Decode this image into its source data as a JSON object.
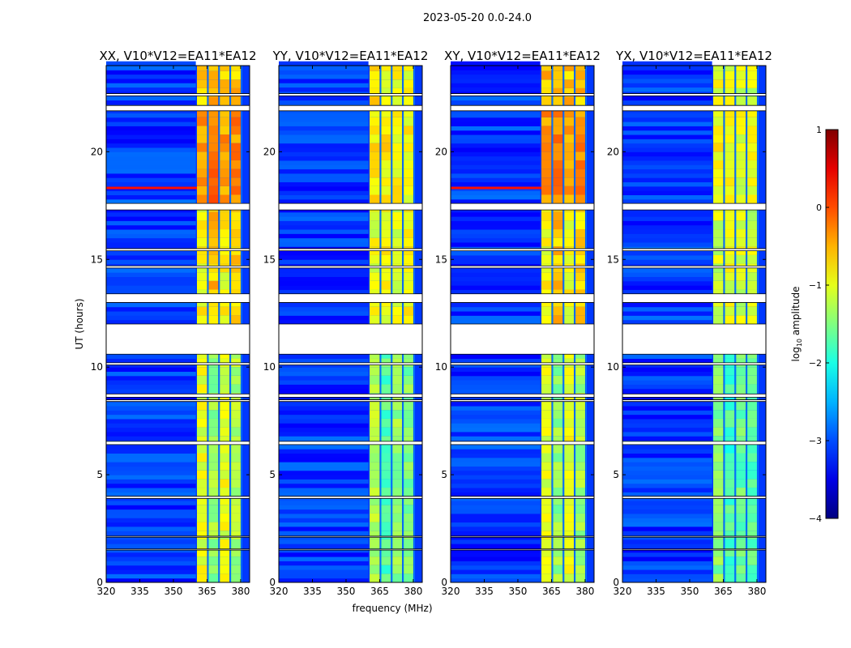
{
  "chart_data": {
    "type": "heatmap",
    "suptitle": "2023-05-20 0.0-24.0",
    "xlabel": "frequency (MHz)",
    "ylabel": "UT (hours)",
    "xlim": [
      320,
      384
    ],
    "ylim": [
      0,
      24
    ],
    "xticks": [
      320,
      335,
      350,
      365,
      380
    ],
    "yticks": [
      0,
      5,
      10,
      15,
      20
    ],
    "colorbar": {
      "label": "log10 amplitude",
      "label_main": "log",
      "label_sub": "10",
      "label_rest": " amplitude",
      "range": [
        -4,
        1
      ],
      "ticks": [
        1,
        0,
        -1,
        -2,
        -3,
        -4
      ],
      "colormap": "jet"
    },
    "background_level": -3.1,
    "subbands": [
      [
        360.5,
        365
      ],
      [
        365.5,
        370
      ],
      [
        370.5,
        375
      ],
      [
        375.5,
        380
      ]
    ],
    "flagged_hours": [
      [
        21.9,
        22.15
      ],
      [
        17.3,
        17.6
      ],
      [
        13.0,
        13.4
      ],
      [
        10.6,
        12.0
      ],
      [
        8.6,
        8.75
      ],
      [
        8.4,
        8.48
      ],
      [
        6.4,
        6.55
      ],
      [
        3.9,
        4.0
      ],
      [
        1.5,
        1.55
      ],
      [
        2.1,
        2.15
      ],
      [
        15.4,
        15.5
      ],
      [
        14.6,
        14.7
      ],
      [
        22.6,
        22.7
      ],
      [
        10.1,
        10.2
      ]
    ],
    "panels": [
      {
        "title": "XX, V10*V12=EA11*EA12",
        "rfi_line_hour": 18.3,
        "segments": [
          {
            "from": 0,
            "to": 10.6,
            "levels": [
              -1.0,
              -1.4,
              -1.0,
              -1.3
            ]
          },
          {
            "from": 12,
            "to": 17.3,
            "levels": [
              -0.9,
              -0.6,
              -0.9,
              -0.7
            ]
          },
          {
            "from": 17.6,
            "to": 21.9,
            "levels": [
              -0.4,
              -0.2,
              -0.4,
              -0.3
            ]
          },
          {
            "from": 22.15,
            "to": 24,
            "levels": [
              -0.6,
              -0.5,
              -0.6,
              -0.6
            ]
          }
        ]
      },
      {
        "title": "YY, V10*V12=EA11*EA12",
        "rfi_line_hour": null,
        "segments": [
          {
            "from": 0,
            "to": 10.6,
            "levels": [
              -1.3,
              -1.7,
              -1.4,
              -1.5
            ]
          },
          {
            "from": 12,
            "to": 17.3,
            "levels": [
              -1.0,
              -0.9,
              -1.0,
              -0.9
            ]
          },
          {
            "from": 17.6,
            "to": 21.9,
            "levels": [
              -0.8,
              -0.8,
              -0.9,
              -0.9
            ]
          },
          {
            "from": 22.15,
            "to": 24,
            "levels": [
              -0.8,
              -0.9,
              -0.9,
              -0.9
            ]
          }
        ]
      },
      {
        "title": "XY, V10*V12=EA11*EA12",
        "rfi_line_hour": 18.3,
        "segments": [
          {
            "from": 0,
            "to": 10.6,
            "levels": [
              -1.0,
              -1.4,
              -1.0,
              -1.3
            ]
          },
          {
            "from": 12,
            "to": 17.3,
            "levels": [
              -0.9,
              -0.6,
              -0.9,
              -0.7
            ]
          },
          {
            "from": 17.6,
            "to": 21.9,
            "levels": [
              -0.4,
              -0.2,
              -0.4,
              -0.3
            ]
          },
          {
            "from": 22.15,
            "to": 24,
            "levels": [
              -0.6,
              -0.5,
              -0.6,
              -0.6
            ]
          }
        ]
      },
      {
        "title": "YX, V10*V12=EA11*EA12",
        "rfi_line_hour": null,
        "segments": [
          {
            "from": 0,
            "to": 10.6,
            "levels": [
              -1.5,
              -1.8,
              -1.6,
              -1.7
            ]
          },
          {
            "from": 12,
            "to": 17.3,
            "levels": [
              -1.1,
              -1.0,
              -1.1,
              -1.1
            ]
          },
          {
            "from": 17.6,
            "to": 21.9,
            "levels": [
              -0.9,
              -0.9,
              -1.0,
              -1.0
            ]
          },
          {
            "from": 22.15,
            "to": 24,
            "levels": [
              -1.0,
              -1.0,
              -1.1,
              -1.1
            ]
          }
        ]
      }
    ]
  }
}
